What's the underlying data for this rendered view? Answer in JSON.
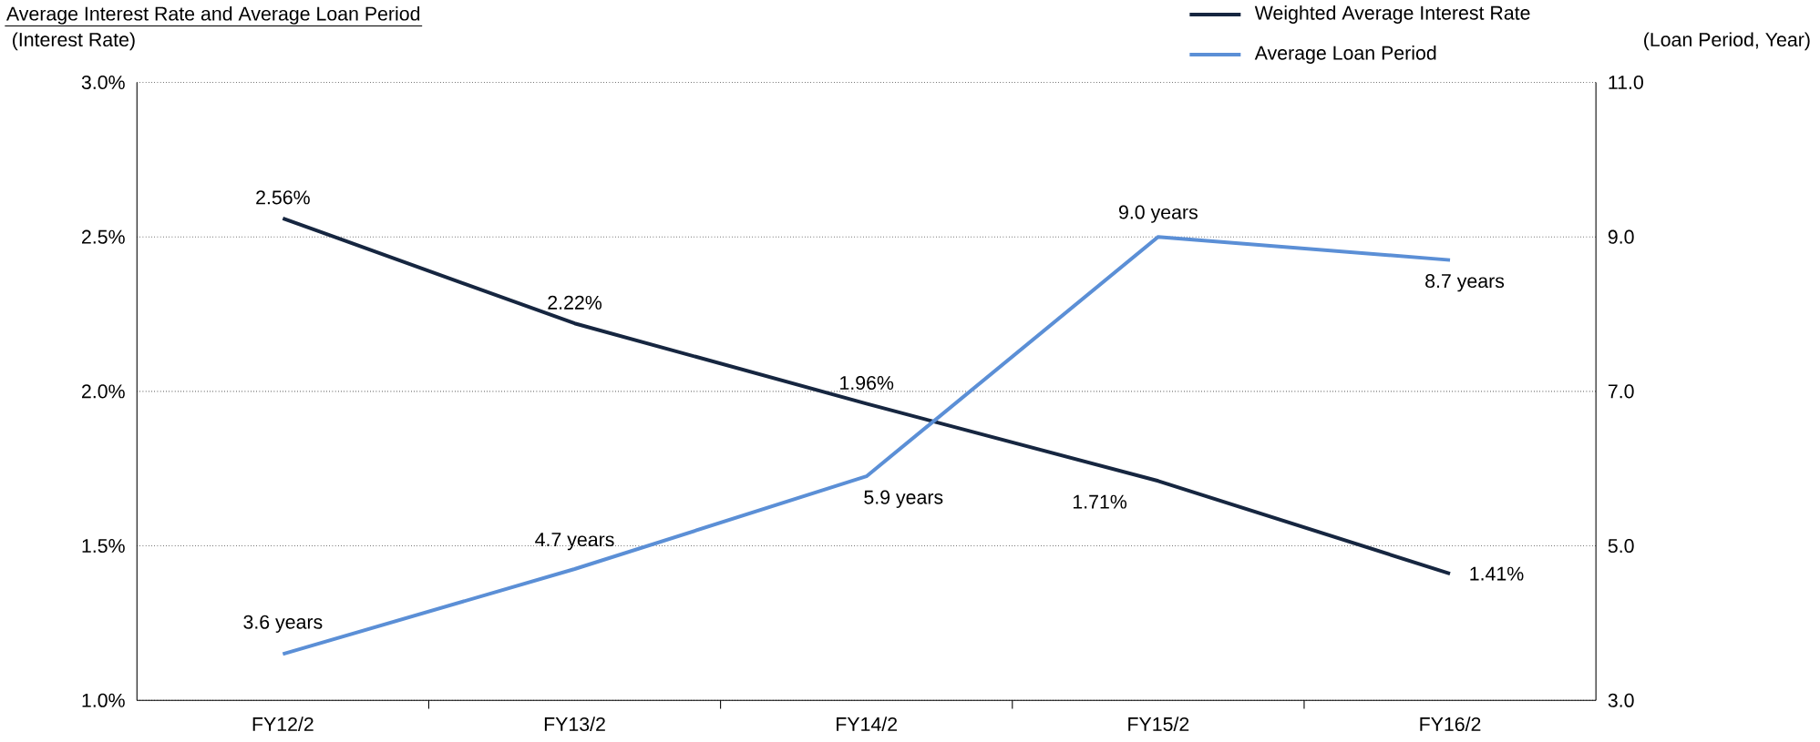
{
  "chart_data": {
    "type": "line",
    "title": "Average Interest Rate and Average Loan Period",
    "ylabel": "(Interest Rate)",
    "y2label": "(Loan Period, Year)",
    "categories": [
      "FY12/2",
      "FY13/2",
      "FY14/2",
      "FY15/2",
      "FY16/2"
    ],
    "ylim": [
      1.0,
      3.0
    ],
    "yticks": [
      {
        "value": 1.0,
        "label": "1.0%"
      },
      {
        "value": 1.5,
        "label": "1.5%"
      },
      {
        "value": 2.0,
        "label": "2.0%"
      },
      {
        "value": 2.5,
        "label": "2.5%"
      },
      {
        "value": 3.0,
        "label": "3.0%"
      }
    ],
    "y2lim": [
      3.0,
      11.0
    ],
    "y2ticks": [
      {
        "value": 3.0,
        "label": "3.0"
      },
      {
        "value": 5.0,
        "label": "5.0"
      },
      {
        "value": 7.0,
        "label": "7.0"
      },
      {
        "value": 9.0,
        "label": "9.0"
      },
      {
        "value": 11.0,
        "label": "11.0"
      }
    ],
    "grid": "y",
    "legend": "top right",
    "series": [
      {
        "name": "Weighted Average Interest Rate",
        "color": "#162640",
        "values": [
          2.56,
          2.22,
          1.96,
          1.71,
          1.41
        ],
        "value_labels": [
          "2.56%",
          "2.22%",
          "1.96%",
          "1.71%",
          "1.41%"
        ]
      },
      {
        "name": "Average Loan Period",
        "color": "#5b8fd6",
        "axis": "y2",
        "values": [
          3.6,
          4.7,
          5.9,
          9.0,
          8.7
        ],
        "value_labels": [
          "3.6 years",
          "4.7 years",
          "5.9 years",
          "9.0 years",
          "8.7 years"
        ]
      }
    ]
  }
}
